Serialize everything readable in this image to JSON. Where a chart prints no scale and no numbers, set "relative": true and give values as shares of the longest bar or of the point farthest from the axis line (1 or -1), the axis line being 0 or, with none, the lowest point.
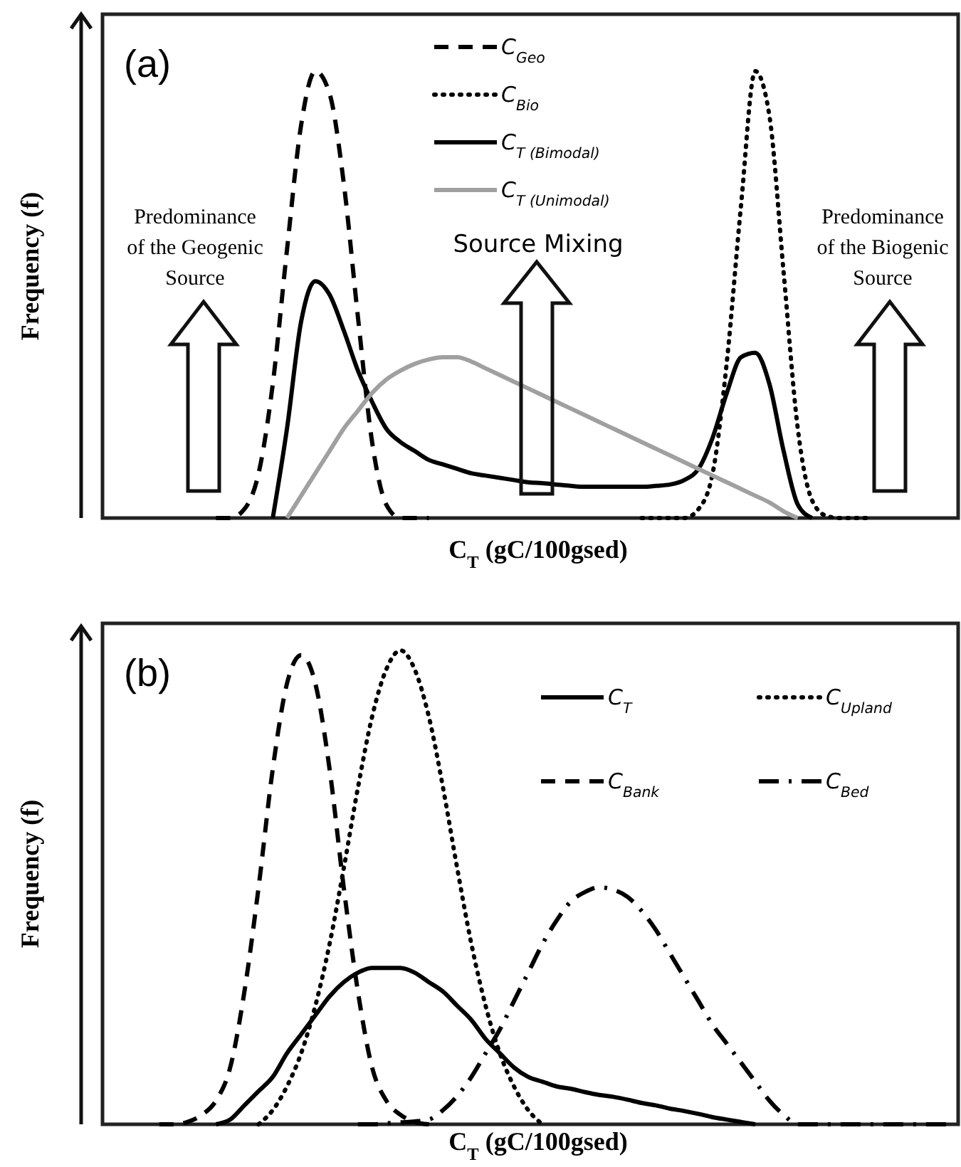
{
  "chart_data": [
    {
      "type": "line",
      "title": "(a)",
      "xlabel": "C$_{T}$ (gC/100gsed)",
      "ylabel": "Frequency (f)",
      "relative": true,
      "legend": "top",
      "categories": [
        null,
        null,
        null,
        null,
        null,
        null,
        null,
        null,
        null,
        null,
        null,
        null,
        null,
        null,
        null,
        null,
        null,
        null,
        null,
        null,
        null,
        null,
        null,
        null,
        null,
        null,
        null,
        null,
        null,
        null,
        null,
        null,
        null,
        null,
        null,
        null,
        null,
        null,
        null,
        null,
        null,
        null,
        null,
        null,
        null,
        null,
        null,
        null,
        null,
        null,
        null,
        null,
        null,
        null,
        null,
        null,
        null,
        null,
        null,
        null,
        null
      ],
      "series": [
        {
          "name": "C$_{Geo}$",
          "color": "#000000",
          "line_style": "dashed",
          "values": [
            null,
            null,
            null,
            null,
            null,
            null,
            null,
            null,
            0,
            0,
            0.02,
            0.1,
            0.3,
            0.6,
            0.88,
            1.0,
            0.95,
            0.75,
            0.45,
            0.17,
            0.03,
            0,
            0,
            0,
            null,
            null,
            null,
            null,
            null,
            null,
            null,
            null,
            null,
            null,
            null,
            null,
            null,
            null,
            null,
            null,
            null,
            null,
            null,
            null,
            null,
            null,
            null,
            null,
            null,
            null,
            null,
            null,
            null,
            null,
            null,
            null,
            null,
            null,
            null,
            null,
            null
          ]
        },
        {
          "name": "C$_{Bio}$",
          "color": "#000000",
          "line_style": "dotted",
          "values": [
            null,
            null,
            null,
            null,
            null,
            null,
            null,
            null,
            null,
            null,
            null,
            null,
            null,
            null,
            null,
            null,
            null,
            null,
            null,
            null,
            null,
            null,
            null,
            null,
            null,
            null,
            null,
            null,
            null,
            null,
            null,
            null,
            null,
            null,
            null,
            null,
            null,
            null,
            0,
            0,
            0,
            0,
            0.02,
            0.1,
            0.35,
            0.7,
            1.0,
            0.9,
            0.55,
            0.2,
            0.04,
            0.005,
            0,
            0,
            0,
            null,
            null,
            null,
            null,
            null,
            null
          ]
        },
        {
          "name": "C$_{T (Bimodal)}$",
          "color": "#000000",
          "line_style": "solid",
          "values": [
            null,
            null,
            null,
            null,
            null,
            null,
            null,
            null,
            null,
            null,
            null,
            null,
            0,
            0.2,
            0.44,
            0.53,
            0.5,
            0.42,
            0.33,
            0.26,
            0.2,
            0.17,
            0.15,
            0.13,
            0.12,
            0.11,
            0.1,
            0.095,
            0.09,
            0.085,
            0.08,
            0.078,
            0.075,
            0.072,
            0.07,
            0.07,
            0.07,
            0.07,
            0.07,
            0.072,
            0.075,
            0.085,
            0.11,
            0.18,
            0.28,
            0.36,
            0.37,
            0.3,
            0.15,
            0.03,
            0,
            null,
            null,
            null,
            null,
            null,
            null,
            null,
            null,
            null,
            null
          ]
        },
        {
          "name": "C$_{T (Unimodal)}$",
          "color": "#a0a0a0",
          "line_style": "solid",
          "values": [
            null,
            null,
            null,
            null,
            null,
            null,
            null,
            null,
            null,
            null,
            null,
            null,
            null,
            0,
            0.05,
            0.1,
            0.15,
            0.2,
            0.24,
            0.28,
            0.31,
            0.33,
            0.345,
            0.355,
            0.36,
            0.36,
            0.35,
            0.335,
            0.32,
            0.305,
            0.29,
            0.275,
            0.26,
            0.245,
            0.23,
            0.215,
            0.2,
            0.185,
            0.17,
            0.155,
            0.14,
            0.125,
            0.11,
            0.095,
            0.08,
            0.065,
            0.05,
            0.035,
            0.015,
            0,
            null,
            null,
            null,
            null,
            null,
            null,
            null,
            null,
            null,
            null,
            null
          ]
        }
      ],
      "annotations": [
        "Predominance\nof the Geogenic\nSource",
        "Source Mixing",
        "Predominance\nof the Biogenic\nSource"
      ]
    },
    {
      "type": "line",
      "title": "(b)",
      "xlabel": "C$_{T}$ (gC/100gsed)",
      "ylabel": "Frequency (f)",
      "relative": true,
      "legend": "top right",
      "categories": [
        null,
        null,
        null,
        null,
        null,
        null,
        null,
        null,
        null,
        null,
        null,
        null,
        null,
        null,
        null,
        null,
        null,
        null,
        null,
        null,
        null,
        null,
        null,
        null,
        null,
        null,
        null,
        null,
        null,
        null,
        null,
        null,
        null,
        null,
        null,
        null,
        null,
        null,
        null,
        null,
        null,
        null,
        null,
        null,
        null,
        null,
        null,
        null,
        null,
        null,
        null,
        null,
        null,
        null,
        null,
        null,
        null,
        null,
        null,
        null,
        null
      ],
      "series": [
        {
          "name": "C$_{T}$",
          "color": "#000000",
          "line_style": "solid",
          "values": [
            null,
            null,
            null,
            null,
            null,
            null,
            null,
            null,
            0,
            0.01,
            0.04,
            0.07,
            0.1,
            0.15,
            0.19,
            0.23,
            0.27,
            0.3,
            0.32,
            0.33,
            0.33,
            0.33,
            0.32,
            0.3,
            0.28,
            0.25,
            0.22,
            0.18,
            0.15,
            0.12,
            0.1,
            0.09,
            0.08,
            0.075,
            0.068,
            0.062,
            0.058,
            0.052,
            0.045,
            0.04,
            0.033,
            0.028,
            0.022,
            0.015,
            0.01,
            0.005,
            0,
            null,
            null,
            null,
            null,
            null,
            null,
            null,
            null,
            null,
            null,
            null,
            null,
            null,
            null
          ]
        },
        {
          "name": "C$_{Upland}$",
          "color": "#000000",
          "line_style": "dotted",
          "values": [
            null,
            null,
            null,
            null,
            null,
            null,
            null,
            null,
            null,
            null,
            null,
            0,
            0.03,
            0.08,
            0.15,
            0.25,
            0.38,
            0.54,
            0.71,
            0.86,
            0.96,
            1.0,
            0.96,
            0.86,
            0.71,
            0.54,
            0.38,
            0.25,
            0.15,
            0.08,
            0.03,
            0,
            null,
            null,
            null,
            null,
            null,
            null,
            null,
            null,
            null,
            null,
            null,
            null,
            null,
            null,
            null,
            null,
            null,
            null,
            null,
            null,
            null,
            null,
            null,
            null,
            null,
            null,
            null,
            null,
            null
          ]
        },
        {
          "name": "C$_{Bank}$",
          "color": "#000000",
          "line_style": "dashed",
          "values": [
            null,
            null,
            null,
            null,
            0,
            0,
            0.005,
            0.02,
            0.05,
            0.12,
            0.28,
            0.5,
            0.75,
            0.93,
            0.99,
            0.93,
            0.75,
            0.5,
            0.28,
            0.12,
            0.05,
            0.02,
            0.005,
            0,
            null,
            null,
            null,
            null,
            null,
            null,
            null,
            null,
            null,
            null,
            null,
            null,
            null,
            null,
            null,
            null,
            null,
            null,
            null,
            null,
            null,
            null,
            null,
            null,
            null,
            null,
            null,
            null,
            null,
            null,
            null,
            null,
            null,
            null,
            null,
            null,
            null
          ]
        },
        {
          "name": "C$_{Bed}$",
          "color": "#000000",
          "line_style": "dashdot",
          "values": [
            null,
            null,
            null,
            null,
            null,
            null,
            null,
            null,
            null,
            null,
            null,
            null,
            null,
            null,
            null,
            null,
            null,
            null,
            0,
            0,
            0.002,
            0.004,
            0.006,
            0.01,
            0.03,
            0.06,
            0.1,
            0.15,
            0.2,
            0.26,
            0.32,
            0.38,
            0.43,
            0.47,
            0.49,
            0.5,
            0.495,
            0.48,
            0.45,
            0.41,
            0.36,
            0.31,
            0.26,
            0.21,
            0.17,
            0.13,
            0.09,
            0.05,
            0.02,
            0,
            0,
            0,
            0,
            0,
            0,
            0,
            0,
            0,
            0,
            0,
            0
          ]
        }
      ]
    }
  ]
}
